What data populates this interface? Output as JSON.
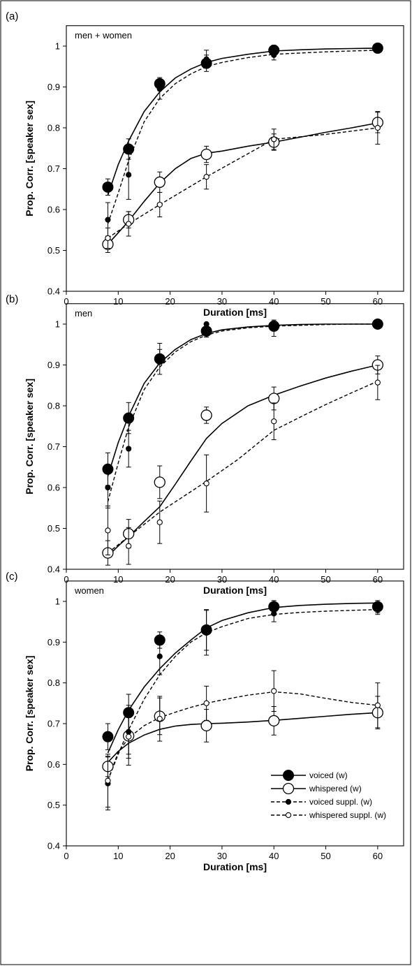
{
  "chart_data": [
    {
      "type": "line",
      "panel_label": "(a)",
      "annotation": "men + women",
      "xlabel": "Duration [ms]",
      "ylabel": "Prop. Corr. [speaker sex]",
      "xlim": [
        0,
        65
      ],
      "ylim": [
        0.4,
        1.05
      ],
      "x_ticks": [
        0,
        10,
        20,
        30,
        40,
        50,
        60
      ],
      "x_tick_labels": [
        "0",
        "10",
        "20",
        "30",
        "40",
        "50",
        "60"
      ],
      "y_ticks": [
        0.4,
        0.5,
        0.6,
        0.7,
        0.8,
        0.9,
        1.0
      ],
      "y_tick_labels": [
        "0.4",
        "0.5",
        "0.6",
        "0.7",
        "0.8",
        "0.9",
        "1"
      ],
      "x": [
        8,
        12,
        18,
        27,
        40,
        60
      ],
      "series": [
        {
          "name": "voiced (w)",
          "marker": "large-filled",
          "line": "solid",
          "values": [
            0.655,
            0.748,
            0.908,
            0.958,
            0.99,
            0.995
          ],
          "errors": [
            0.02,
            0.025,
            0.015,
            0.02,
            0.012,
            0.005
          ],
          "fit": [
            [
              8,
              0.635
            ],
            [
              10,
              0.71
            ],
            [
              12,
              0.768
            ],
            [
              15,
              0.84
            ],
            [
              18,
              0.888
            ],
            [
              21,
              0.922
            ],
            [
              24,
              0.944
            ],
            [
              27,
              0.96
            ],
            [
              30,
              0.97
            ],
            [
              35,
              0.98
            ],
            [
              40,
              0.988
            ],
            [
              45,
              0.991
            ],
            [
              50,
              0.993
            ],
            [
              55,
              0.994
            ],
            [
              60,
              0.995
            ]
          ]
        },
        {
          "name": "whispered (w)",
          "marker": "large-open",
          "line": "solid",
          "values": [
            0.515,
            0.575,
            0.667,
            0.735,
            0.765,
            0.813
          ],
          "errors": [
            0.02,
            0.02,
            0.025,
            0.02,
            0.02,
            0.025
          ],
          "fit": [
            [
              8,
              0.515
            ],
            [
              10,
              0.543
            ],
            [
              12,
              0.572
            ],
            [
              15,
              0.62
            ],
            [
              18,
              0.665
            ],
            [
              21,
              0.7
            ],
            [
              24,
              0.725
            ],
            [
              27,
              0.738
            ],
            [
              30,
              0.743
            ],
            [
              35,
              0.755
            ],
            [
              40,
              0.765
            ],
            [
              45,
              0.777
            ],
            [
              50,
              0.789
            ],
            [
              55,
              0.8
            ],
            [
              60,
              0.812
            ]
          ]
        },
        {
          "name": "voiced suppl. (w)",
          "marker": "small-filled",
          "line": "dashed",
          "values": [
            0.575,
            0.685,
            0.895,
            0.968,
            0.978,
            0.995
          ],
          "errors": [
            0.042,
            0.06,
            0.025,
            0.022,
            0.012,
            0.005
          ],
          "fit": [
            [
              8,
              0.565
            ],
            [
              10,
              0.64
            ],
            [
              12,
              0.72
            ],
            [
              15,
              0.815
            ],
            [
              18,
              0.872
            ],
            [
              21,
              0.908
            ],
            [
              24,
              0.932
            ],
            [
              27,
              0.95
            ],
            [
              30,
              0.96
            ],
            [
              35,
              0.972
            ],
            [
              40,
              0.98
            ],
            [
              45,
              0.983
            ],
            [
              50,
              0.986
            ],
            [
              55,
              0.988
            ],
            [
              60,
              0.99
            ]
          ]
        },
        {
          "name": "whispered suppl. (w)",
          "marker": "small-open",
          "line": "dashed",
          "values": [
            0.53,
            0.565,
            0.612,
            0.68,
            0.772,
            0.8
          ],
          "errors": [
            0.025,
            0.03,
            0.03,
            0.03,
            0.025,
            0.04
          ],
          "fit": [
            [
              8,
              0.53
            ],
            [
              12,
              0.565
            ],
            [
              18,
              0.612
            ],
            [
              27,
              0.68
            ],
            [
              40,
              0.772
            ],
            [
              45,
              0.778
            ],
            [
              50,
              0.784
            ],
            [
              55,
              0.792
            ],
            [
              60,
              0.8
            ]
          ]
        }
      ]
    },
    {
      "type": "line",
      "panel_label": "(b)",
      "annotation": "men",
      "xlabel": "Duration [ms]",
      "ylabel": "Prop. Corr. [speaker sex]",
      "xlim": [
        0,
        65
      ],
      "ylim": [
        0.4,
        1.05
      ],
      "x_ticks": [
        0,
        10,
        20,
        30,
        40,
        50,
        60
      ],
      "x_tick_labels": [
        "0",
        "10",
        "20",
        "30",
        "40",
        "50",
        "60"
      ],
      "y_ticks": [
        0.4,
        0.5,
        0.6,
        0.7,
        0.8,
        0.9,
        1.0
      ],
      "y_tick_labels": [
        "0.4",
        "0.5",
        "0.6",
        "0.7",
        "0.8",
        "0.9",
        "1"
      ],
      "x": [
        8,
        12,
        18,
        27,
        40,
        60
      ],
      "series": [
        {
          "name": "voiced (w)",
          "marker": "large-filled",
          "line": "solid",
          "values": [
            0.645,
            0.77,
            0.915,
            0.983,
            0.995,
            1.0
          ],
          "errors": [
            0.04,
            0.038,
            0.038,
            0.015,
            0.012,
            0.0
          ],
          "fit": [
            [
              8,
              0.628
            ],
            [
              10,
              0.71
            ],
            [
              12,
              0.775
            ],
            [
              15,
              0.855
            ],
            [
              18,
              0.905
            ],
            [
              21,
              0.938
            ],
            [
              24,
              0.962
            ],
            [
              27,
              0.977
            ],
            [
              30,
              0.986
            ],
            [
              35,
              0.993
            ],
            [
              40,
              0.997
            ],
            [
              45,
              0.999
            ],
            [
              50,
              1.0
            ],
            [
              55,
              1.0
            ],
            [
              60,
              1.0
            ]
          ]
        },
        {
          "name": "whispered (w)",
          "marker": "large-open",
          "line": "solid",
          "values": [
            0.44,
            0.487,
            0.613,
            0.777,
            0.818,
            0.9
          ],
          "errors": [
            0.03,
            0.035,
            0.04,
            0.02,
            0.028,
            0.022
          ],
          "fit": [
            [
              8,
              0.432
            ],
            [
              10,
              0.457
            ],
            [
              12,
              0.48
            ],
            [
              15,
              0.517
            ],
            [
              18,
              0.553
            ],
            [
              21,
              0.608
            ],
            [
              24,
              0.665
            ],
            [
              27,
              0.72
            ],
            [
              30,
              0.757
            ],
            [
              35,
              0.8
            ],
            [
              40,
              0.826
            ],
            [
              45,
              0.848
            ],
            [
              50,
              0.868
            ],
            [
              55,
              0.885
            ],
            [
              60,
              0.9
            ]
          ]
        },
        {
          "name": "voiced suppl. (w)",
          "marker": "small-filled",
          "line": "dashed",
          "values": [
            0.6,
            0.695,
            0.92,
            1.0,
            0.99,
            1.0
          ],
          "errors": [
            0.05,
            0.045,
            0.018,
            0.0,
            0.02,
            0.0
          ],
          "fit": [
            [
              8,
              0.565
            ],
            [
              10,
              0.66
            ],
            [
              12,
              0.748
            ],
            [
              15,
              0.84
            ],
            [
              18,
              0.895
            ],
            [
              21,
              0.932
            ],
            [
              24,
              0.957
            ],
            [
              27,
              0.973
            ],
            [
              30,
              0.983
            ],
            [
              35,
              0.991
            ],
            [
              40,
              0.995
            ],
            [
              45,
              0.997
            ],
            [
              50,
              0.999
            ],
            [
              55,
              1.0
            ],
            [
              60,
              1.0
            ]
          ]
        },
        {
          "name": "whispered suppl. (w)",
          "marker": "small-open",
          "line": "dashed",
          "values": [
            0.495,
            0.457,
            0.515,
            0.61,
            0.762,
            0.857
          ],
          "errors": [
            0.06,
            0.045,
            0.052,
            0.07,
            0.045,
            0.042
          ],
          "fit": [
            [
              8,
              0.44
            ],
            [
              12,
              0.48
            ],
            [
              18,
              0.54
            ],
            [
              27,
              0.615
            ],
            [
              33,
              0.668
            ],
            [
              40,
              0.74
            ],
            [
              45,
              0.772
            ],
            [
              50,
              0.803
            ],
            [
              55,
              0.832
            ],
            [
              60,
              0.86
            ]
          ]
        }
      ]
    },
    {
      "type": "line",
      "panel_label": "(c)",
      "annotation": "women",
      "xlabel": "Duration [ms]",
      "ylabel": "Prop. Corr. [speaker sex]",
      "xlim": [
        0,
        65
      ],
      "ylim": [
        0.4,
        1.05
      ],
      "x_ticks": [
        0,
        10,
        20,
        30,
        40,
        50,
        60
      ],
      "x_tick_labels": [
        "0",
        "10",
        "20",
        "30",
        "40",
        "50",
        "60"
      ],
      "y_ticks": [
        0.4,
        0.5,
        0.6,
        0.7,
        0.8,
        0.9,
        1.0
      ],
      "y_tick_labels": [
        "0.4",
        "0.5",
        "0.6",
        "0.7",
        "0.8",
        "0.9",
        "1"
      ],
      "x": [
        8,
        12,
        18,
        27,
        40,
        60
      ],
      "series": [
        {
          "name": "voiced (w)",
          "marker": "large-filled",
          "line": "solid",
          "values": [
            0.668,
            0.727,
            0.905,
            0.93,
            0.987,
            0.987
          ],
          "errors": [
            0.032,
            0.045,
            0.02,
            0.05,
            0.015,
            0.015
          ],
          "fit": [
            [
              8,
              0.628
            ],
            [
              10,
              0.685
            ],
            [
              12,
              0.733
            ],
            [
              15,
              0.79
            ],
            [
              18,
              0.835
            ],
            [
              21,
              0.873
            ],
            [
              24,
              0.905
            ],
            [
              27,
              0.935
            ],
            [
              30,
              0.953
            ],
            [
              35,
              0.972
            ],
            [
              40,
              0.985
            ],
            [
              45,
              0.99
            ],
            [
              50,
              0.993
            ],
            [
              55,
              0.995
            ],
            [
              60,
              0.996
            ]
          ]
        },
        {
          "name": "whispered (w)",
          "marker": "large-open",
          "line": "solid",
          "values": [
            0.595,
            0.67,
            0.718,
            0.695,
            0.707,
            0.727
          ],
          "errors": [
            0.025,
            0.045,
            0.045,
            0.04,
            0.035,
            0.04
          ],
          "fit": [
            [
              8,
              0.605
            ],
            [
              10,
              0.632
            ],
            [
              12,
              0.652
            ],
            [
              15,
              0.672
            ],
            [
              18,
              0.686
            ],
            [
              21,
              0.694
            ],
            [
              24,
              0.698
            ],
            [
              27,
              0.7
            ],
            [
              30,
              0.701
            ],
            [
              35,
              0.704
            ],
            [
              40,
              0.708
            ],
            [
              45,
              0.713
            ],
            [
              50,
              0.718
            ],
            [
              55,
              0.723
            ],
            [
              60,
              0.727
            ]
          ]
        },
        {
          "name": "voiced suppl. (w)",
          "marker": "small-filled",
          "line": "dashed",
          "values": [
            0.553,
            0.68,
            0.865,
            0.923,
            0.97,
            0.98
          ],
          "errors": [
            0.065,
            0.065,
            0.045,
            0.055,
            0.02,
            0.012
          ],
          "fit": [
            [
              8,
              0.56
            ],
            [
              10,
              0.625
            ],
            [
              12,
              0.685
            ],
            [
              15,
              0.76
            ],
            [
              18,
              0.82
            ],
            [
              21,
              0.865
            ],
            [
              24,
              0.9
            ],
            [
              27,
              0.923
            ],
            [
              30,
              0.938
            ],
            [
              35,
              0.958
            ],
            [
              40,
              0.968
            ],
            [
              45,
              0.973
            ],
            [
              50,
              0.976
            ],
            [
              55,
              0.978
            ],
            [
              60,
              0.98
            ]
          ]
        },
        {
          "name": "whispered suppl. (w)",
          "marker": "small-open",
          "line": "dashed",
          "values": [
            0.56,
            0.668,
            0.712,
            0.75,
            0.78,
            0.745
          ],
          "errors": [
            0.065,
            0.07,
            0.055,
            0.042,
            0.05,
            0.055
          ],
          "fit": [
            [
              8,
              0.56
            ],
            [
              10,
              0.63
            ],
            [
              12,
              0.665
            ],
            [
              15,
              0.695
            ],
            [
              18,
              0.715
            ],
            [
              21,
              0.728
            ],
            [
              24,
              0.74
            ],
            [
              27,
              0.75
            ],
            [
              30,
              0.758
            ],
            [
              35,
              0.77
            ],
            [
              40,
              0.778
            ],
            [
              45,
              0.773
            ],
            [
              50,
              0.762
            ],
            [
              55,
              0.752
            ],
            [
              60,
              0.745
            ]
          ]
        }
      ]
    }
  ],
  "legend": {
    "entries": [
      {
        "label": "voiced (w)",
        "marker": "large-filled",
        "line": "solid"
      },
      {
        "label": "whispered (w)",
        "marker": "large-open",
        "line": "solid"
      },
      {
        "label": "voiced suppl. (w)",
        "marker": "small-filled",
        "line": "dashed"
      },
      {
        "label": "whispered suppl. (w)",
        "marker": "small-open",
        "line": "dashed"
      }
    ]
  },
  "colors": {
    "ink": "#000000",
    "background": "#ffffff"
  }
}
